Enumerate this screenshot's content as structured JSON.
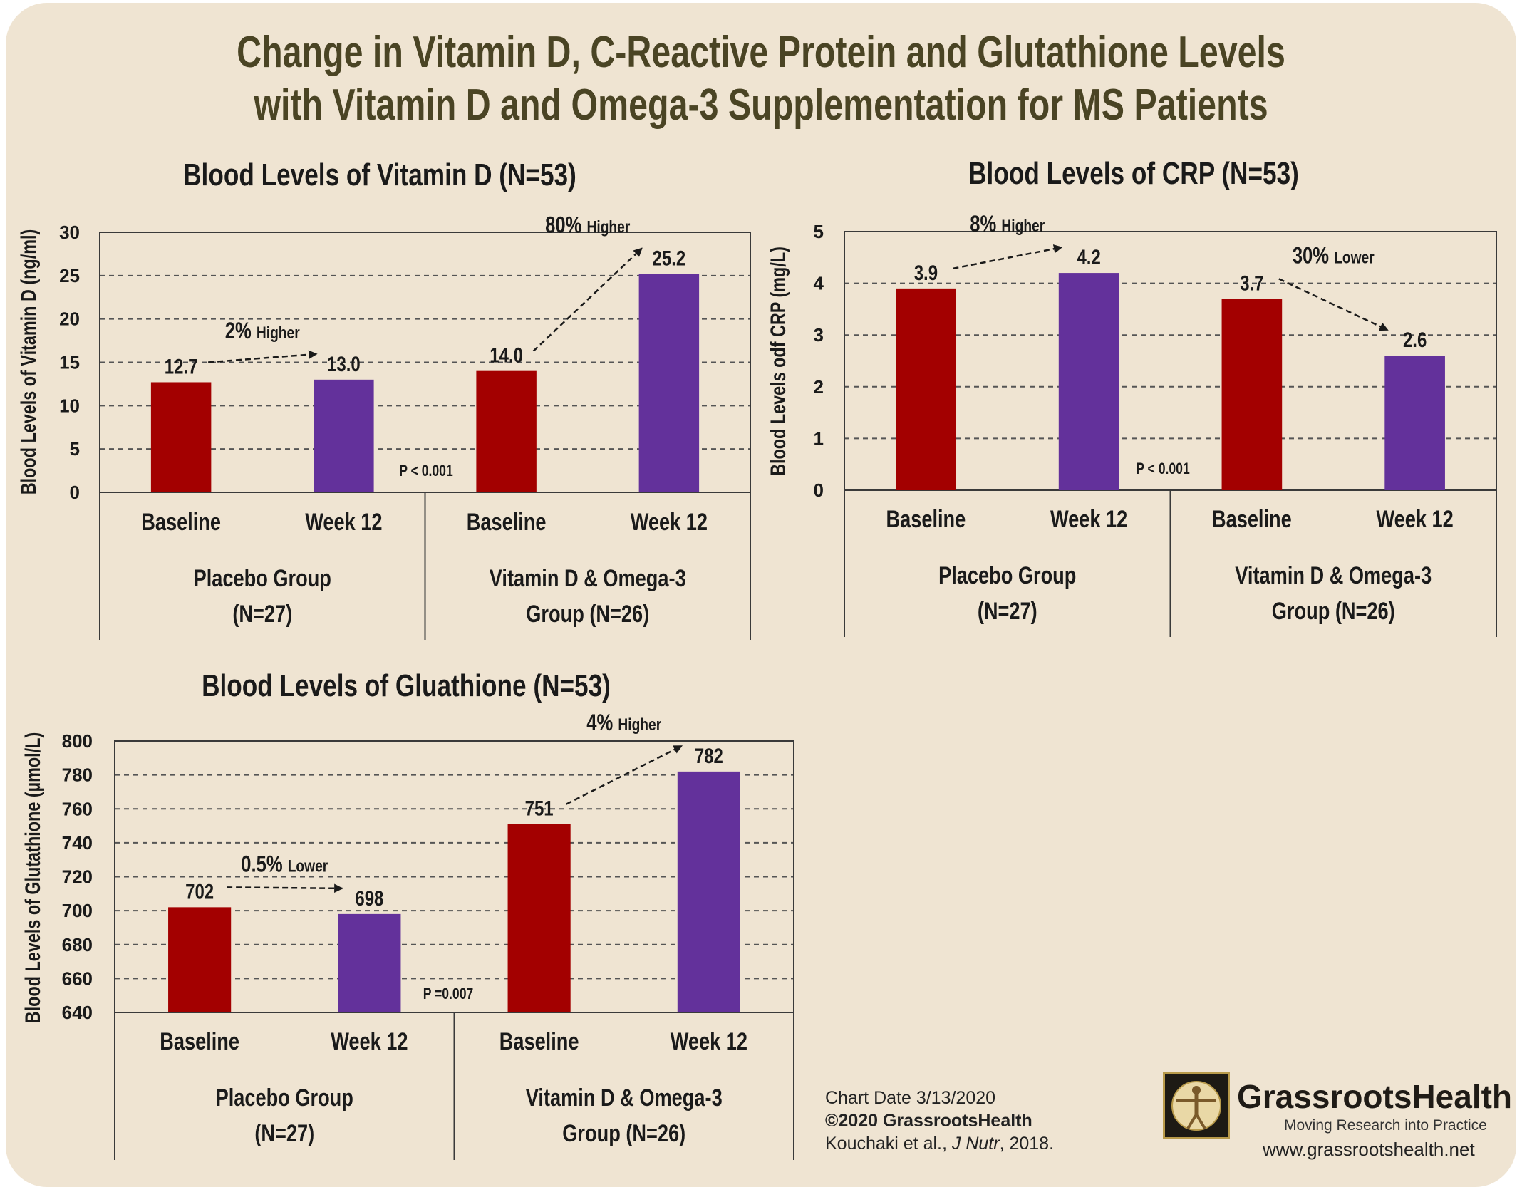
{
  "title": {
    "line1": "Change in Vitamin D, C-Reactive Protein and Glutathione Levels",
    "line2": "with Vitamin D and Omega-3 Supplementation for MS Patients"
  },
  "colors": {
    "baseline": "#a30000",
    "week12": "#63319b",
    "background": "#efe4d2",
    "title": "#4a4424"
  },
  "chart_data": [
    {
      "type": "bar",
      "title": "Blood Levels of Vitamin D (N=53)",
      "ylabel": "Blood Levels of Vitamin D (ng/ml)",
      "ylim": [
        0,
        30
      ],
      "yticks": [
        0,
        5,
        10,
        15,
        20,
        25,
        30
      ],
      "ytick_labels": [
        "0",
        "5",
        "10",
        "15",
        "20",
        "25",
        "30"
      ],
      "categories": [
        "Baseline",
        "Week 12",
        "Baseline",
        "Week 12"
      ],
      "values": [
        12.7,
        13.0,
        14.0,
        25.2
      ],
      "value_labels": [
        "12.7",
        "13.0",
        "14.0",
        "25.2"
      ],
      "groups": [
        {
          "line1": "Placebo Group",
          "line2": "(N=27)"
        },
        {
          "line1": "Vitamin D & Omega-3",
          "line2": "Group (N=26)"
        }
      ],
      "grid": true,
      "annotations": [
        {
          "big": "2%",
          "small": "Higher",
          "from": 0,
          "to": 1
        },
        {
          "big": "80%",
          "small": "Higher",
          "from": 2,
          "to": 3
        }
      ],
      "pvalue": "P < 0.001"
    },
    {
      "type": "bar",
      "title": "Blood Levels of CRP (N=53)",
      "ylabel": "Blood Levels odf CRP (mg/L)",
      "ylim": [
        0,
        5
      ],
      "yticks": [
        0,
        1,
        2,
        3,
        4,
        5
      ],
      "ytick_labels": [
        "0",
        "1",
        "2",
        "3",
        "4",
        "5"
      ],
      "categories": [
        "Baseline",
        "Week 12",
        "Baseline",
        "Week 12"
      ],
      "values": [
        3.9,
        4.2,
        3.7,
        2.6
      ],
      "value_labels": [
        "3.9",
        "4.2",
        "3.7",
        "2.6"
      ],
      "groups": [
        {
          "line1": "Placebo Group",
          "line2": "(N=27)"
        },
        {
          "line1": "Vitamin D & Omega-3",
          "line2": "Group (N=26)"
        }
      ],
      "grid": true,
      "annotations": [
        {
          "big": "8%",
          "small": "Higher",
          "from": 0,
          "to": 1
        },
        {
          "big": "30%",
          "small": "Lower",
          "from": 2,
          "to": 3
        }
      ],
      "pvalue": "P < 0.001"
    },
    {
      "type": "bar",
      "title": "Blood Levels of Gluathione (N=53)",
      "ylabel": "Blood Levels of Glutathione (µmol/L)",
      "ylim": [
        640,
        800
      ],
      "yticks": [
        640,
        660,
        680,
        700,
        720,
        740,
        760,
        780,
        800
      ],
      "ytick_labels": [
        "640",
        "660",
        "680",
        "700",
        "720",
        "740",
        "760",
        "780",
        "800"
      ],
      "categories": [
        "Baseline",
        "Week 12",
        "Baseline",
        "Week 12"
      ],
      "values": [
        702,
        698,
        751,
        782
      ],
      "value_labels": [
        "702",
        "698",
        "751",
        "782"
      ],
      "groups": [
        {
          "line1": "Placebo Group",
          "line2": "(N=27)"
        },
        {
          "line1": "Vitamin D & Omega-3",
          "line2": "Group (N=26)"
        }
      ],
      "grid": true,
      "annotations": [
        {
          "big": "0.5%",
          "small": "Lower",
          "from": 0,
          "to": 1
        },
        {
          "big": "4%",
          "small": "Higher",
          "from": 2,
          "to": 3
        }
      ],
      "pvalue": "P =0.007"
    }
  ],
  "footer": {
    "chart_date": "Chart Date 3/13/2020",
    "copyright": "©2020 GrassrootsHealth",
    "citation_authors": "Kouchaki et al., ",
    "citation_journal": "J Nutr",
    "citation_year": ", 2018.",
    "brand": "GrassrootsHealth",
    "tagline": "Moving Research into Practice",
    "url": "www.grassrootshealth.net"
  }
}
